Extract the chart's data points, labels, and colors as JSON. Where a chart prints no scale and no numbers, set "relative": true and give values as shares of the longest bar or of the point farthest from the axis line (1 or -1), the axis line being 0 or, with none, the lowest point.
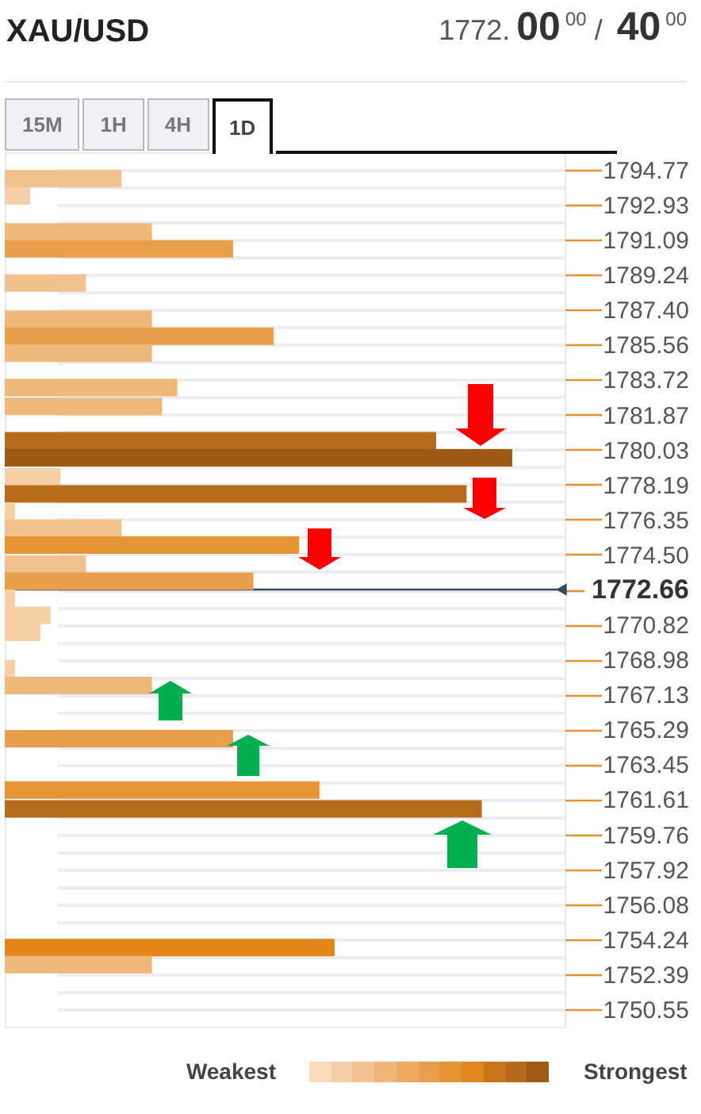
{
  "chart_data": {
    "type": "bar",
    "title": "XAU/USD",
    "subtitle": "1772.00$^{00}$ / 40$^{00}$",
    "orientation": "horizontal",
    "relative": true,
    "x": [
      1794.3,
      1793.4,
      1791.5,
      1790.6,
      1788.8,
      1786.9,
      1786.0,
      1785.1,
      1783.3,
      1782.3,
      1780.5,
      1779.6,
      1778.6,
      1777.7,
      1776.8,
      1775.9,
      1775.0,
      1774.0,
      1773.1,
      1772.2,
      1771.3,
      1770.4,
      1768.5,
      1767.6,
      1764.8,
      1762.1,
      1761.1,
      1753.8,
      1752.9
    ],
    "values": [
      0.23,
      0.05,
      0.29,
      0.45,
      0.16,
      0.29,
      0.53,
      0.29,
      0.34,
      0.31,
      0.85,
      1,
      0.11,
      0.91,
      0.02,
      0.23,
      0.58,
      0.16,
      0.49,
      0.02,
      0.09,
      0.07,
      0.02,
      0.29,
      0.45,
      0.62,
      0.94,
      0.65,
      0.29
    ],
    "colors": [
      "#f2c28e",
      "#f5cfa5",
      "#eeb87a",
      "#e9a04d",
      "#f2c28e",
      "#eeb87a",
      "#e9a04d",
      "#eeb87a",
      "#eeb87a",
      "#eeb87a",
      "#b56b1a",
      "#9c5a14",
      "#f5d0a5",
      "#b56b1a",
      "#f5d0a5",
      "#f2c28e",
      "#e69535",
      "#f2c28e",
      "#e9a04d",
      "#f5d0a5",
      "#f5d0a5",
      "#f5d0a5",
      "#f5d0a5",
      "#eeb87a",
      "#e9a04d",
      "#e69535",
      "#b56b1a",
      "#e3861a",
      "#eeb87a"
    ],
    "ylim": [
      1749.63,
      1795.69
    ],
    "yticks": [
      1794.77,
      {
        "value": 1793.85,
        "label": null
      },
      1792.93,
      {
        "value": 1792.01,
        "label": null
      },
      1791.09,
      {
        "value": 1790.17,
        "label": null
      },
      1789.24,
      {
        "value": 1788.32,
        "label": null
      },
      {
        "value": 1787.4,
        "label": "1787.40"
      },
      {
        "value": 1786.48,
        "label": null
      },
      1785.56,
      {
        "value": 1784.64,
        "label": null
      },
      1783.72,
      {
        "value": 1782.8,
        "label": null
      },
      1781.87,
      {
        "value": 1780.95,
        "label": null
      },
      1780.03,
      {
        "value": 1779.11,
        "label": null
      },
      1778.19,
      {
        "value": 1777.27,
        "label": null
      },
      1776.35,
      {
        "value": 1775.43,
        "label": null
      },
      {
        "value": 1774.5,
        "label": "1774.50"
      },
      {
        "value": 1773.58,
        "label": null
      },
      1772.66,
      {
        "value": 1771.74,
        "label": null
      },
      1770.82,
      {
        "value": 1769.9,
        "label": null
      },
      1768.98,
      {
        "value": 1768.06,
        "label": null
      },
      1767.13,
      {
        "value": 1766.21,
        "label": null
      },
      1765.29,
      {
        "value": 1764.37,
        "label": null
      },
      1763.45,
      {
        "value": 1762.53,
        "label": null
      },
      1761.61,
      {
        "value": 1760.69,
        "label": null
      },
      1759.76,
      {
        "value": 1758.84,
        "label": null
      },
      1757.92,
      {
        "value": 1757,
        "label": null
      },
      1756.08,
      {
        "value": 1755.16,
        "label": null
      },
      1754.24,
      {
        "value": 1753.32,
        "label": null
      },
      1752.39,
      {
        "value": 1751.47,
        "label": null
      },
      1750.55
    ],
    "ref_lines": [
      {
        "axis": "y",
        "value": 1772.66,
        "color": "#34495e"
      }
    ],
    "grid": "y",
    "annotations": [
      "15M",
      "1H",
      "4H",
      "1D",
      "Weakest",
      "Strongest"
    ]
  }
}
